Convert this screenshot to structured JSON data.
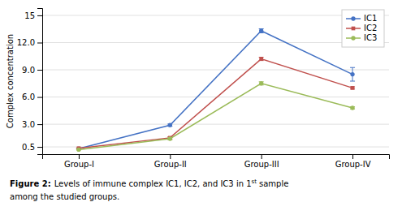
{
  "chart_data": {
    "type": "line",
    "ylabel": "Complex concentration",
    "categories": [
      "Group-I",
      "Group-II",
      "Group-III",
      "Group-IV"
    ],
    "series": [
      {
        "name": "IC1",
        "color": "#4472C4",
        "marker": "circle",
        "values": [
          0.3,
          2.9,
          13.3,
          8.5
        ],
        "errors": [
          0.05,
          0.12,
          0.22,
          0.75
        ]
      },
      {
        "name": "IC2",
        "color": "#C0504D",
        "marker": "square",
        "values": [
          0.35,
          1.5,
          10.2,
          7.0
        ],
        "errors": [
          0.04,
          0.12,
          0.18,
          0.12
        ]
      },
      {
        "name": "IC3",
        "color": "#9BBB59",
        "marker": "circle",
        "values": [
          0.2,
          1.4,
          7.5,
          4.8
        ],
        "errors": [
          0.04,
          0.12,
          0.18,
          0.12
        ]
      }
    ],
    "ylim": [
      -0.3,
      15.8
    ],
    "yticks": [
      0.5,
      {
        "value": 3.0,
        "label": "3.0"
      },
      {
        "value": 6.0,
        "label": "6.0"
      },
      {
        "value": 9.0,
        "label": "9.0"
      },
      {
        "value": 12.0,
        "label": "12.0"
      },
      15
    ],
    "grid": true,
    "legend": "upper right",
    "annotations": [
      "Figure 2:",
      "Levels of immune complex IC1, IC2, and IC3 in 1",
      "st",
      "sample",
      "among the studied groups."
    ]
  }
}
